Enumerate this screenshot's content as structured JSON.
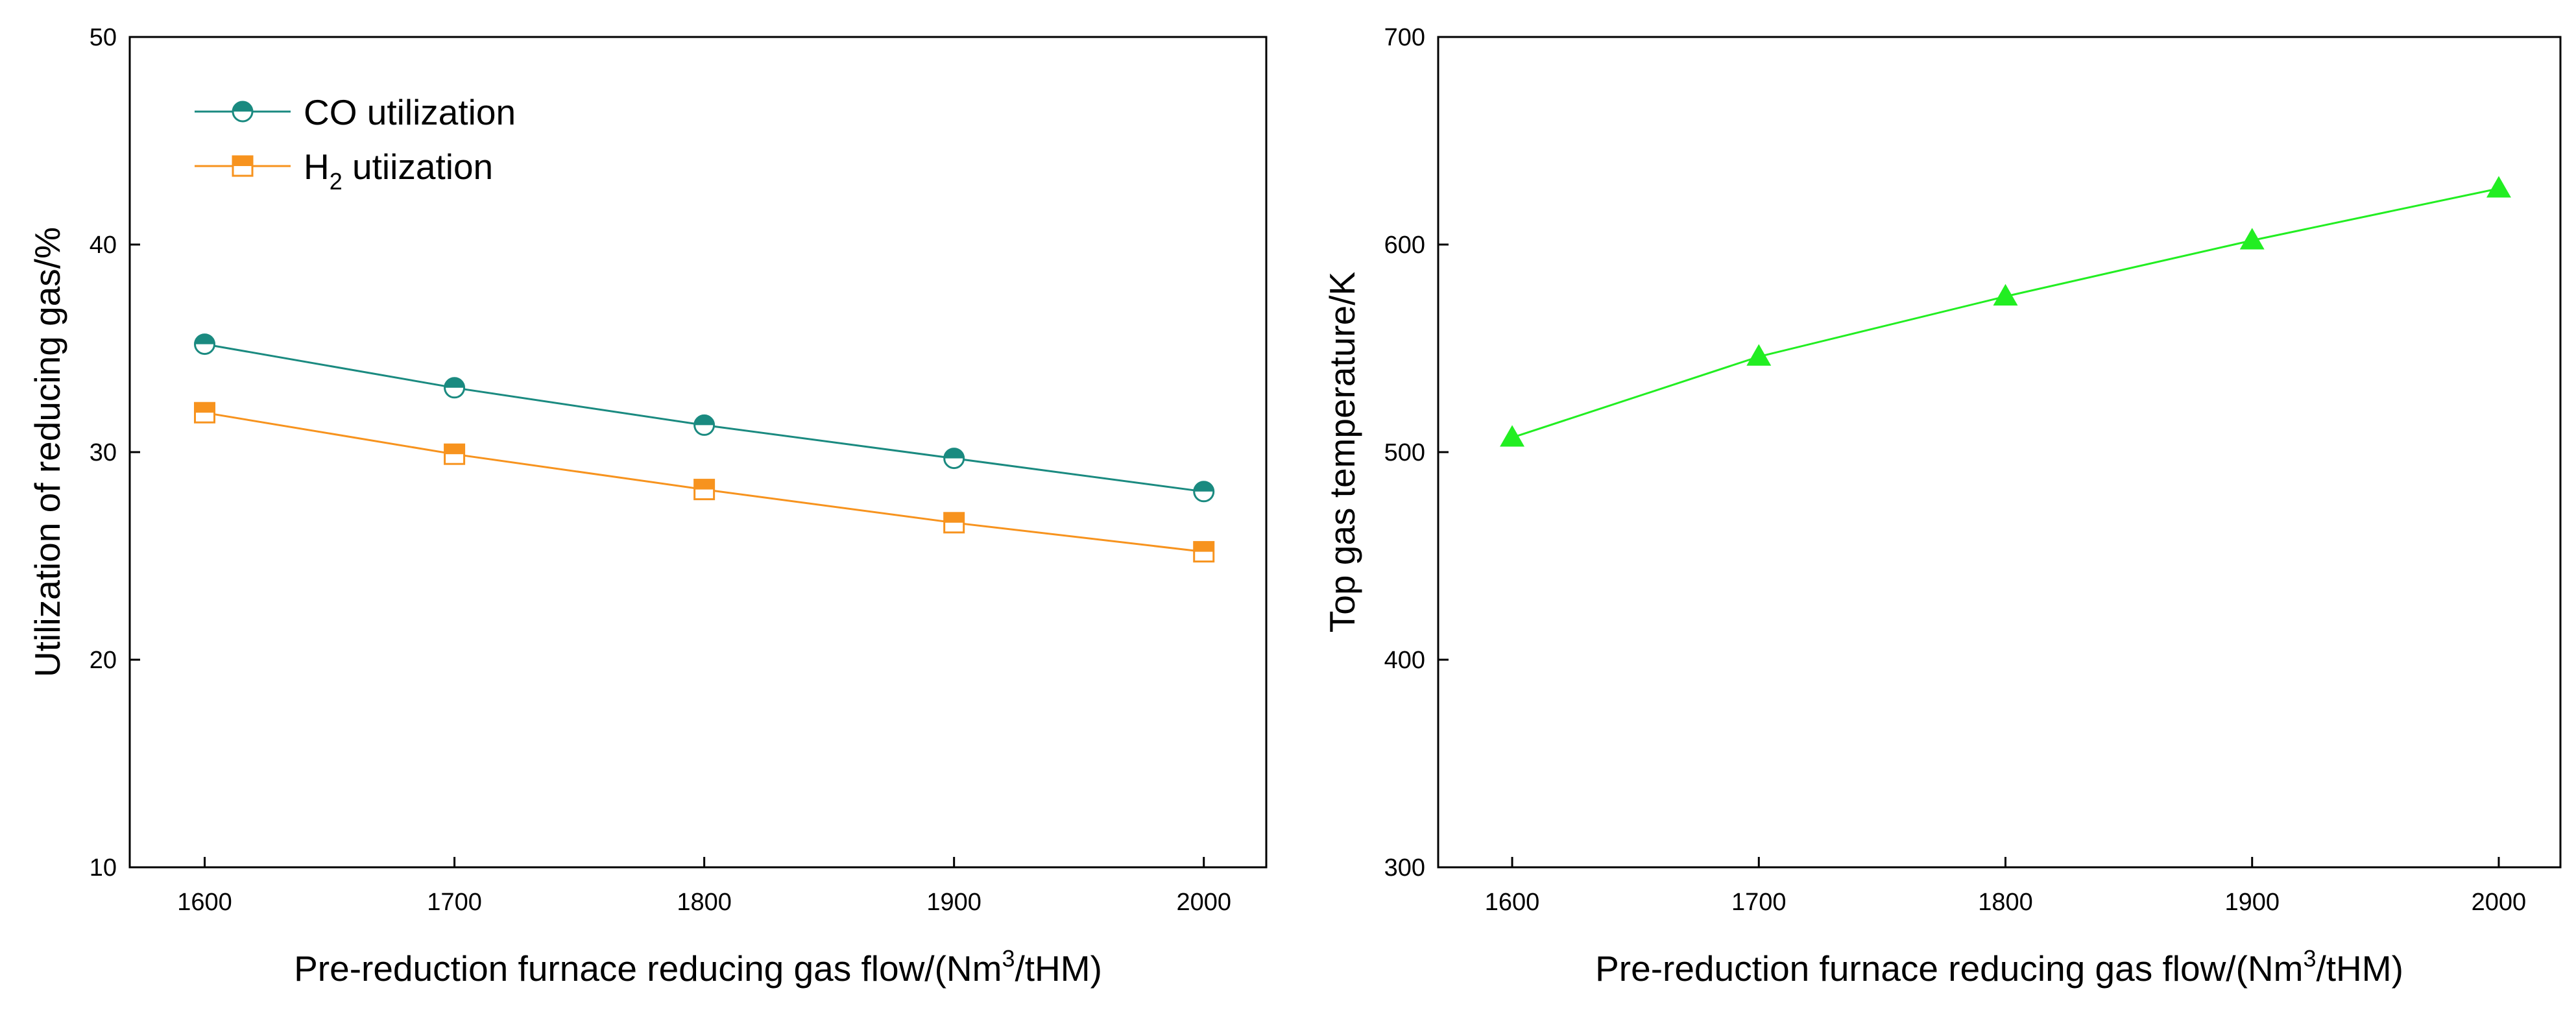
{
  "chart_data": [
    {
      "type": "line",
      "xlabel": {
        "pre": "Pre-reduction furnace reducing gas flow/(Nm",
        "sup": "3",
        "post": "/tHM)"
      },
      "ylabel": "Utilization of reducing gas/%",
      "x": [
        1600,
        1700,
        1800,
        1900,
        2000
      ],
      "xlim": [
        1570,
        2025
      ],
      "ylim": [
        10,
        50
      ],
      "xticks": [
        1600,
        1700,
        1800,
        1900,
        2000
      ],
      "yticks": [
        10,
        20,
        30,
        40,
        50
      ],
      "grid": false,
      "legend_position": "top-left",
      "series": [
        {
          "name": {
            "pre": "CO utilization",
            "sub": "",
            "post": ""
          },
          "values": [
            35.2,
            33.1,
            31.3,
            29.7,
            28.1
          ],
          "color": "#1a8a80",
          "marker": "half-circle"
        },
        {
          "name": {
            "pre": "H",
            "sub": "2",
            "post": " utiization"
          },
          "values": [
            31.9,
            29.9,
            28.2,
            26.6,
            25.2
          ],
          "color": "#f7931e",
          "marker": "half-square"
        }
      ]
    },
    {
      "type": "line",
      "xlabel": {
        "pre": "Pre-reduction furnace reducing gas flow/(Nm",
        "sup": "3",
        "post": "/tHM)"
      },
      "ylabel": "Top gas temperature/K",
      "x": [
        1600,
        1700,
        1800,
        1900,
        2000
      ],
      "xlim": [
        1570,
        2025
      ],
      "ylim": [
        300,
        700
      ],
      "xticks": [
        1600,
        1700,
        1800,
        1900,
        2000
      ],
      "yticks": [
        300,
        400,
        500,
        600,
        700
      ],
      "grid": false,
      "series": [
        {
          "values": [
            507,
            546,
            575,
            602,
            627
          ],
          "color": "#22ee22",
          "marker": "triangle"
        }
      ]
    }
  ]
}
